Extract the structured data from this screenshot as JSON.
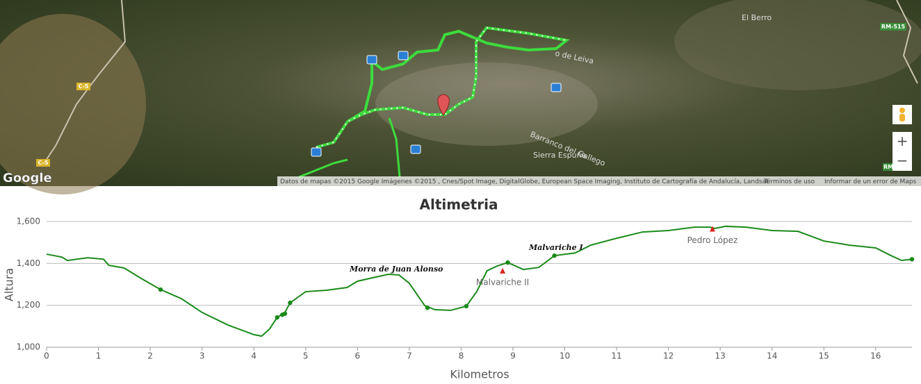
{
  "map": {
    "places": [
      "El Berro",
      "Barranco del Gallego",
      "Sierra Espuña",
      "o de Leiva"
    ],
    "roads": [
      "RM-515",
      "C-5",
      "C-5",
      "RM"
    ],
    "logo": "Google",
    "attribution": "Datos de mapas ©2015 Google Imágenes ©2015 , Cnes/Spot Image, DigitalGlobe, European Space Imaging, Instituto de Cartografía de Andalucía, Landsat",
    "terms": "Términos de uso",
    "report": "Informar de un error de Maps",
    "zoom_in": "+",
    "zoom_out": "−"
  },
  "chart_data": {
    "type": "line",
    "title": "Altimetria",
    "x_label": "Kilometros",
    "y_label": "Altura",
    "color": "#1a8a1a",
    "grid": true,
    "x": [
      0,
      0.3,
      0.4,
      0.8,
      1.1,
      1.2,
      1.5,
      1.8,
      2.2,
      2.6,
      3.0,
      3.5,
      4.0,
      4.15,
      4.3,
      4.45,
      4.6,
      4.7,
      5.0,
      5.4,
      5.8,
      6.0,
      6.3,
      6.6,
      6.8,
      7.0,
      7.3,
      7.5,
      7.8,
      8.1,
      8.3,
      8.5,
      8.7,
      8.9,
      9.2,
      9.5,
      9.8,
      10.2,
      10.5,
      11.0,
      11.5,
      12.0,
      12.5,
      12.8,
      12.9,
      13.1,
      13.5,
      14.0,
      14.5,
      15.0,
      15.5,
      16.0,
      16.3,
      16.5,
      16.7
    ],
    "values": [
      1444,
      1430,
      1414,
      1427,
      1420,
      1391,
      1378,
      1332,
      1275,
      1232,
      1166,
      1106,
      1060,
      1053,
      1086,
      1142,
      1166,
      1212,
      1265,
      1272,
      1285,
      1315,
      1332,
      1348,
      1345,
      1305,
      1198,
      1179,
      1176,
      1196,
      1265,
      1365,
      1388,
      1404,
      1371,
      1381,
      1437,
      1450,
      1487,
      1520,
      1550,
      1557,
      1573,
      1573,
      1567,
      1577,
      1573,
      1557,
      1553,
      1507,
      1487,
      1474,
      1437,
      1414,
      1420
    ],
    "waypoints": {
      "x": [
        2.2,
        4.45,
        4.55,
        4.6,
        4.7,
        7.35,
        8.1,
        8.9,
        9.8,
        16.7
      ],
      "values": [
        1275,
        1142,
        1155,
        1160,
        1212,
        1188,
        1196,
        1404,
        1437,
        1420
      ]
    },
    "peaks": [
      {
        "label": "Malvariche II",
        "x": 8.8,
        "y": 1365
      },
      {
        "label": "Pedro López",
        "x": 12.85,
        "y": 1565
      }
    ],
    "annotations": [
      {
        "text": "Morra de Juan Alonso",
        "x": 6.75,
        "y": 1371
      },
      {
        "text": "Malvariche I",
        "x": 9.83,
        "y": 1474
      }
    ],
    "xlim": [
      0,
      16.7
    ],
    "ylim": [
      1000,
      1600
    ],
    "xticks": [
      0,
      1,
      2,
      3,
      4,
      5,
      6,
      7,
      8,
      9,
      10,
      11,
      12,
      13,
      14,
      15,
      16
    ],
    "yticks": [
      {
        "value": 1000,
        "label": "1,000"
      },
      {
        "value": 1200,
        "label": "1,200"
      },
      {
        "value": 1400,
        "label": "1,400"
      },
      {
        "value": 1600,
        "label": "1,600"
      }
    ]
  }
}
